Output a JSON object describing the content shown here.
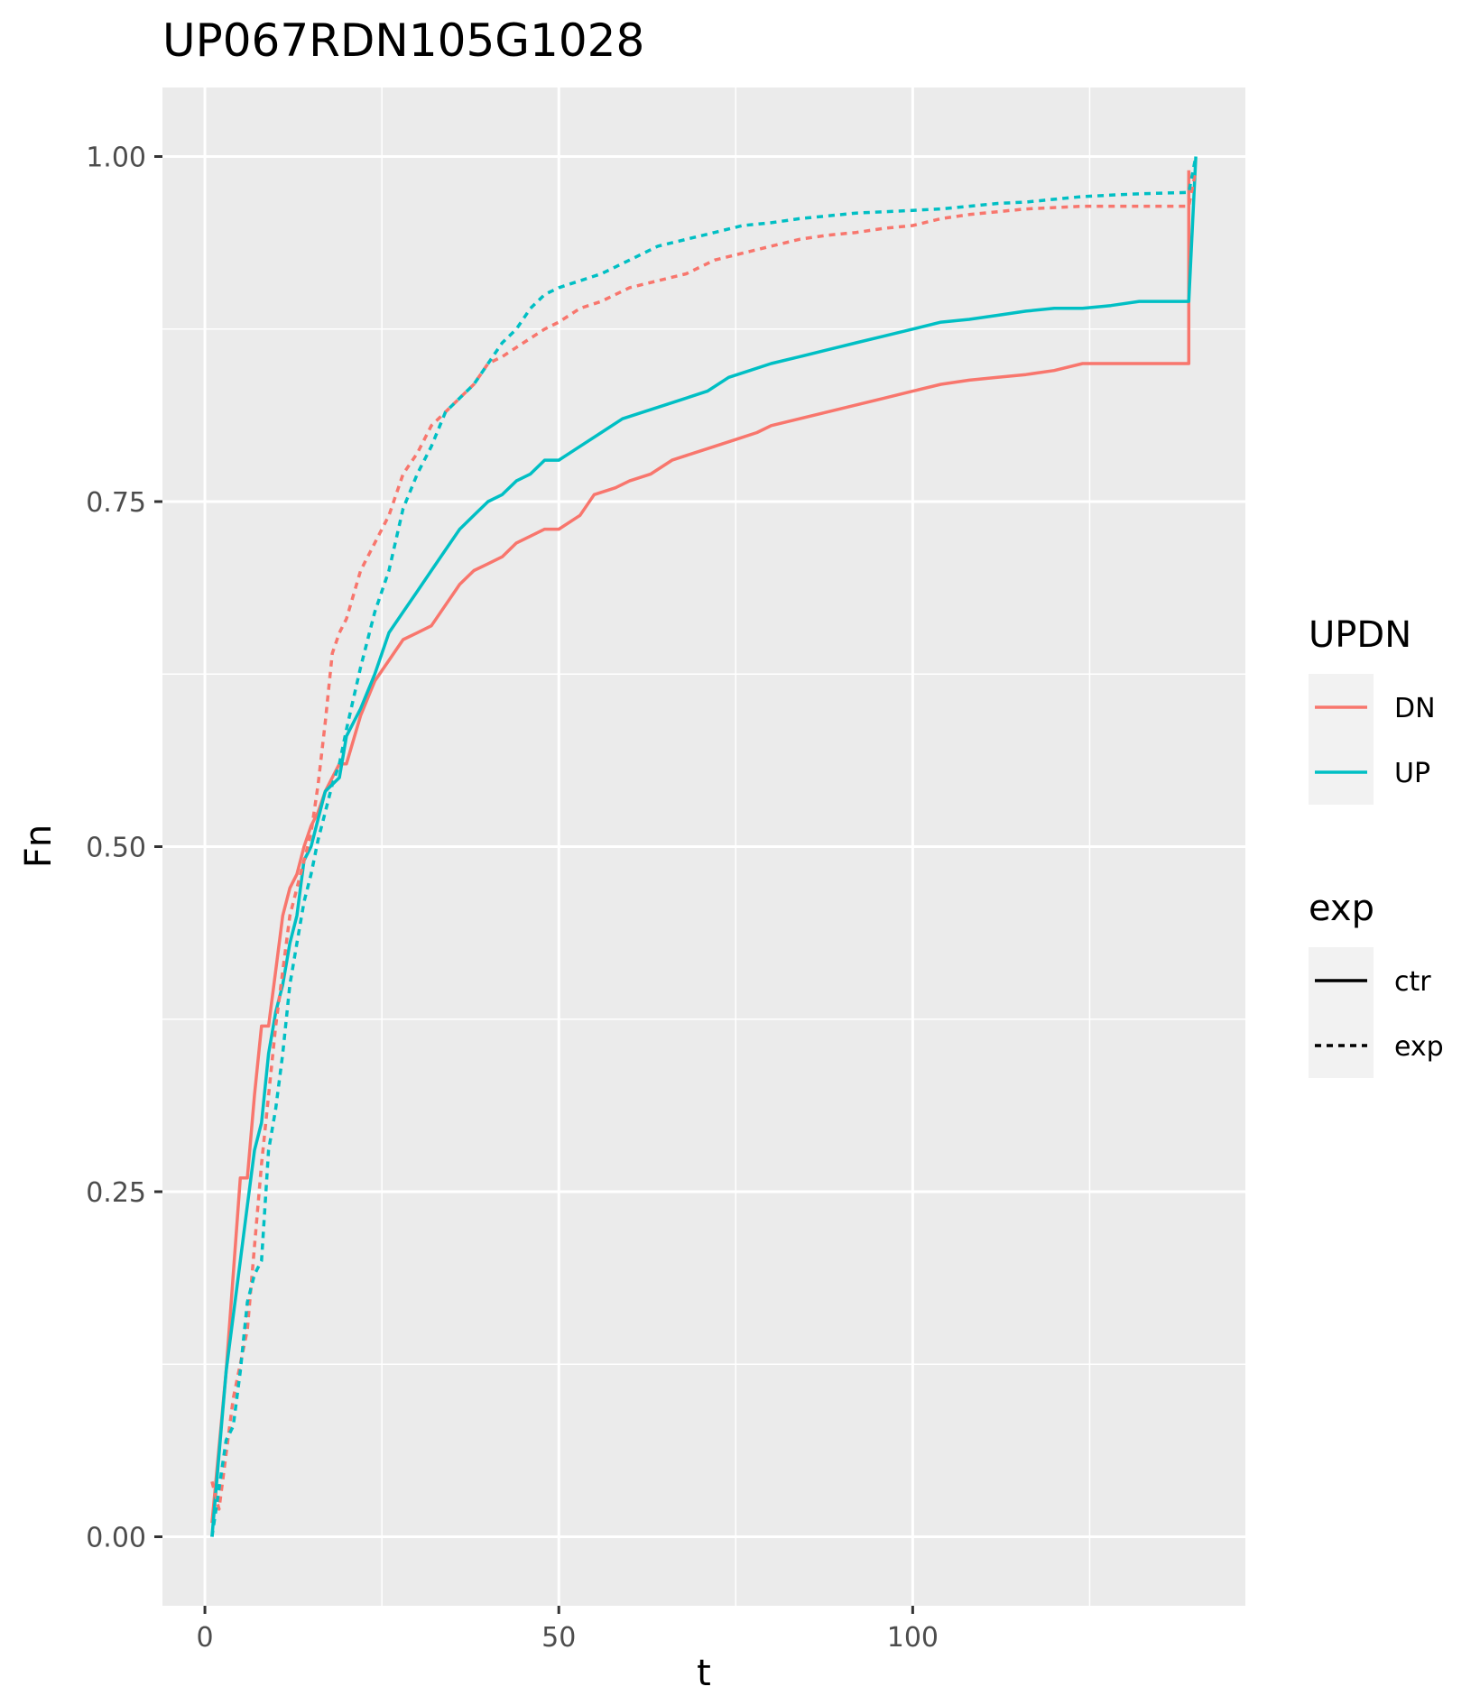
{
  "chart_data": {
    "type": "line",
    "title": "UP067RDN105G1028",
    "xlabel": "t",
    "ylabel": "Fn",
    "xlim": [
      -6,
      147
    ],
    "ylim": [
      -0.05,
      1.05
    ],
    "x_ticks": [
      "0",
      "50",
      "100"
    ],
    "y_ticks": [
      "0.00",
      "0.25",
      "0.50",
      "0.75",
      "1.00"
    ],
    "grid": true,
    "legend_position": "right",
    "colors": {
      "DN": "#F8766D",
      "UP": "#00BFC4",
      "panel": "#EBEBEB",
      "grid": "#FFFFFF"
    },
    "legends": [
      {
        "title": "UPDN",
        "items": [
          {
            "label": "DN",
            "kind": "color"
          },
          {
            "label": "UP",
            "kind": "color"
          }
        ]
      },
      {
        "title": "exp",
        "items": [
          {
            "label": "ctr",
            "kind": "linetype"
          },
          {
            "label": "exp",
            "kind": "linetype"
          }
        ]
      }
    ],
    "series": [
      {
        "updn": "DN",
        "exp": "ctr",
        "x": [
          1,
          3,
          5,
          6,
          7,
          8,
          9,
          10,
          11,
          12,
          13,
          14,
          15,
          16,
          17,
          18,
          19,
          20,
          22,
          24,
          26,
          28,
          30,
          32,
          34,
          36,
          38,
          40,
          42,
          44,
          46,
          48,
          50,
          53,
          55,
          58,
          60,
          63,
          66,
          69,
          72,
          75,
          78,
          80,
          84,
          88,
          92,
          96,
          100,
          104,
          108,
          112,
          116,
          120,
          124,
          139,
          139
        ],
        "y": [
          0.01,
          0.12,
          0.26,
          0.26,
          0.32,
          0.37,
          0.37,
          0.41,
          0.45,
          0.47,
          0.48,
          0.5,
          0.515,
          0.525,
          0.54,
          0.55,
          0.56,
          0.56,
          0.595,
          0.62,
          0.635,
          0.65,
          0.655,
          0.66,
          0.675,
          0.69,
          0.7,
          0.705,
          0.71,
          0.72,
          0.725,
          0.73,
          0.73,
          0.74,
          0.755,
          0.76,
          0.765,
          0.77,
          0.78,
          0.785,
          0.79,
          0.795,
          0.8,
          0.805,
          0.81,
          0.815,
          0.82,
          0.825,
          0.83,
          0.835,
          0.838,
          0.84,
          0.842,
          0.845,
          0.85,
          0.85,
          0.99
        ]
      },
      {
        "updn": "UP",
        "exp": "ctr",
        "x": [
          1,
          3,
          5,
          6,
          7,
          8,
          9,
          10,
          11,
          12,
          13,
          14,
          15,
          16,
          17,
          18,
          19,
          20,
          22,
          24,
          26,
          28,
          30,
          32,
          34,
          36,
          38,
          40,
          42,
          44,
          46,
          48,
          50,
          53,
          56,
          59,
          62,
          65,
          68,
          71,
          74,
          77,
          80,
          84,
          88,
          92,
          96,
          100,
          104,
          108,
          112,
          116,
          120,
          124,
          128,
          132,
          139,
          140
        ],
        "y": [
          0.0,
          0.12,
          0.2,
          0.24,
          0.28,
          0.3,
          0.35,
          0.38,
          0.4,
          0.43,
          0.45,
          0.49,
          0.5,
          0.52,
          0.54,
          0.545,
          0.55,
          0.58,
          0.6,
          0.625,
          0.655,
          0.67,
          0.685,
          0.7,
          0.715,
          0.73,
          0.74,
          0.75,
          0.755,
          0.765,
          0.77,
          0.78,
          0.78,
          0.79,
          0.8,
          0.81,
          0.815,
          0.82,
          0.825,
          0.83,
          0.84,
          0.845,
          0.85,
          0.855,
          0.86,
          0.865,
          0.87,
          0.875,
          0.88,
          0.882,
          0.885,
          0.888,
          0.89,
          0.89,
          0.892,
          0.895,
          0.895,
          1.0
        ]
      },
      {
        "updn": "DN",
        "exp": "exp",
        "x": [
          1,
          2,
          4,
          6,
          8,
          10,
          12,
          14,
          15,
          16,
          17,
          18,
          19,
          20,
          22,
          24,
          26,
          28,
          30,
          32,
          34,
          36,
          38,
          40,
          42,
          45,
          48,
          50,
          53,
          56,
          60,
          64,
          68,
          72,
          76,
          80,
          84,
          88,
          92,
          96,
          100,
          104,
          108,
          112,
          116,
          120,
          124,
          139,
          140
        ],
        "y": [
          0.04,
          0.02,
          0.1,
          0.15,
          0.27,
          0.37,
          0.45,
          0.49,
          0.51,
          0.545,
          0.59,
          0.64,
          0.655,
          0.665,
          0.7,
          0.72,
          0.74,
          0.77,
          0.785,
          0.805,
          0.815,
          0.825,
          0.835,
          0.85,
          0.855,
          0.865,
          0.875,
          0.88,
          0.89,
          0.895,
          0.905,
          0.91,
          0.915,
          0.925,
          0.93,
          0.935,
          0.94,
          0.943,
          0.945,
          0.948,
          0.95,
          0.955,
          0.958,
          0.96,
          0.962,
          0.963,
          0.964,
          0.964,
          0.99
        ]
      },
      {
        "updn": "UP",
        "exp": "exp",
        "x": [
          1,
          3,
          4,
          5,
          6,
          7,
          8,
          9,
          10,
          11,
          12,
          13,
          14,
          15,
          16,
          17,
          18,
          19,
          20,
          22,
          24,
          26,
          28,
          30,
          32,
          34,
          36,
          38,
          40,
          42,
          44,
          46,
          48,
          50,
          53,
          56,
          60,
          64,
          68,
          72,
          76,
          80,
          84,
          88,
          92,
          96,
          100,
          104,
          108,
          112,
          116,
          120,
          124,
          128,
          132,
          139,
          140
        ],
        "y": [
          0.0,
          0.07,
          0.08,
          0.12,
          0.17,
          0.19,
          0.2,
          0.28,
          0.31,
          0.35,
          0.4,
          0.43,
          0.46,
          0.48,
          0.505,
          0.525,
          0.545,
          0.56,
          0.585,
          0.63,
          0.67,
          0.7,
          0.745,
          0.77,
          0.79,
          0.815,
          0.825,
          0.835,
          0.85,
          0.865,
          0.875,
          0.89,
          0.9,
          0.905,
          0.91,
          0.915,
          0.925,
          0.935,
          0.94,
          0.945,
          0.95,
          0.952,
          0.955,
          0.957,
          0.959,
          0.96,
          0.961,
          0.962,
          0.964,
          0.966,
          0.967,
          0.969,
          0.971,
          0.972,
          0.973,
          0.974,
          1.0
        ]
      }
    ]
  }
}
